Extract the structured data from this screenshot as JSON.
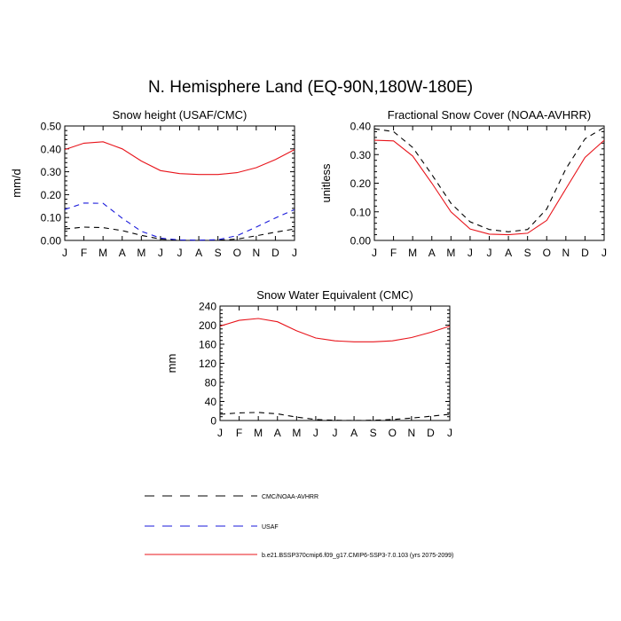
{
  "figure_title": "N. Hemisphere Land (EQ-90N,180W-180E)",
  "colors": {
    "control": "#000000",
    "usaf": "#1a1adb",
    "case": "#e8141b"
  },
  "legend": {
    "items": [
      {
        "label": "CMC/NOAA-AVHRR",
        "color": "#000000",
        "dash": "dashed"
      },
      {
        "label": "USAF",
        "color": "#1a1adb",
        "dash": "dashed"
      },
      {
        "label": "b.e21.BSSP370cmip6.f09_g17.CMIP6-SSP3-7.0.103 (yrs 2075-2099)",
        "color": "#e8141b",
        "dash": "solid"
      }
    ]
  },
  "chart_data": [
    {
      "id": "snow-height",
      "type": "line",
      "title": "Snow height (USAF/CMC)",
      "xlabel": "",
      "ylabel": "mm/d",
      "categories": [
        "J",
        "F",
        "M",
        "A",
        "M",
        "J",
        "J",
        "A",
        "S",
        "O",
        "N",
        "D",
        "J"
      ],
      "ylim": [
        0,
        0.5
      ],
      "yticks": [
        0,
        0.1,
        0.2,
        0.3,
        0.4,
        0.5
      ],
      "ytick_labels": [
        "0.00",
        "0.10",
        "0.20",
        "0.30",
        "0.40",
        "0.50"
      ],
      "series": [
        {
          "name": "CMC/NOAA-AVHRR",
          "color": "#000000",
          "dash": "dashed",
          "values": [
            0.05,
            0.058,
            0.056,
            0.043,
            0.022,
            0.006,
            0.001,
            0.0,
            0.001,
            0.006,
            0.02,
            0.036,
            0.05
          ]
        },
        {
          "name": "USAF",
          "color": "#1a1adb",
          "dash": "dashed",
          "values": [
            0.135,
            0.163,
            0.162,
            0.097,
            0.04,
            0.01,
            0.002,
            0.001,
            0.003,
            0.021,
            0.058,
            0.098,
            0.135
          ]
        },
        {
          "name": "b.e21.BSSP370cmip6.f09_g17.CMIP6-SSP3-7.0.103 (yrs 2075-2099)",
          "color": "#e8141b",
          "dash": "solid",
          "values": [
            0.397,
            0.425,
            0.431,
            0.4,
            0.347,
            0.305,
            0.292,
            0.288,
            0.288,
            0.296,
            0.318,
            0.353,
            0.397
          ]
        }
      ]
    },
    {
      "id": "fractional-snow-cover",
      "type": "line",
      "title": "Fractional Snow Cover (NOAA-AVHRR)",
      "xlabel": "",
      "ylabel": "unitless",
      "categories": [
        "J",
        "F",
        "M",
        "A",
        "M",
        "J",
        "J",
        "A",
        "S",
        "O",
        "N",
        "D",
        "J"
      ],
      "ylim": [
        0,
        0.4
      ],
      "yticks": [
        0,
        0.1,
        0.2,
        0.3,
        0.4
      ],
      "ytick_labels": [
        "0.00",
        "0.10",
        "0.20",
        "0.30",
        "0.40"
      ],
      "series": [
        {
          "name": "CMC/NOAA-AVHRR",
          "color": "#000000",
          "dash": "dashed",
          "values": [
            0.39,
            0.38,
            0.325,
            0.23,
            0.13,
            0.065,
            0.038,
            0.03,
            0.038,
            0.11,
            0.25,
            0.355,
            0.395
          ]
        },
        {
          "name": "b.e21.BSSP370cmip6.f09_g17.CMIP6-SSP3-7.0.103 (yrs 2075-2099)",
          "color": "#e8141b",
          "dash": "solid",
          "values": [
            0.35,
            0.348,
            0.295,
            0.2,
            0.1,
            0.04,
            0.022,
            0.02,
            0.025,
            0.07,
            0.18,
            0.29,
            0.35
          ]
        }
      ]
    },
    {
      "id": "snow-water-equivalent",
      "type": "line",
      "title": "Snow Water Equivalent (CMC)",
      "xlabel": "",
      "ylabel": "mm",
      "categories": [
        "J",
        "F",
        "M",
        "A",
        "M",
        "J",
        "J",
        "A",
        "S",
        "O",
        "N",
        "D",
        "J"
      ],
      "ylim": [
        0,
        240
      ],
      "yticks": [
        0,
        40,
        80,
        120,
        160,
        200,
        240
      ],
      "ytick_labels": [
        "0",
        "40",
        "80",
        "120",
        "160",
        "200",
        "240"
      ],
      "series": [
        {
          "name": "CMC/NOAA-AVHRR",
          "color": "#000000",
          "dash": "dashed",
          "values": [
            13,
            16,
            17,
            14,
            7,
            2,
            0.5,
            0,
            0.5,
            2,
            5,
            9,
            13
          ]
        },
        {
          "name": "b.e21.BSSP370cmip6.f09_g17.CMIP6-SSP3-7.0.103 (yrs 2075-2099)",
          "color": "#e8141b",
          "dash": "solid",
          "values": [
            198,
            210,
            214,
            207,
            188,
            173,
            167,
            165,
            165,
            167,
            174,
            185,
            198
          ]
        }
      ]
    }
  ]
}
